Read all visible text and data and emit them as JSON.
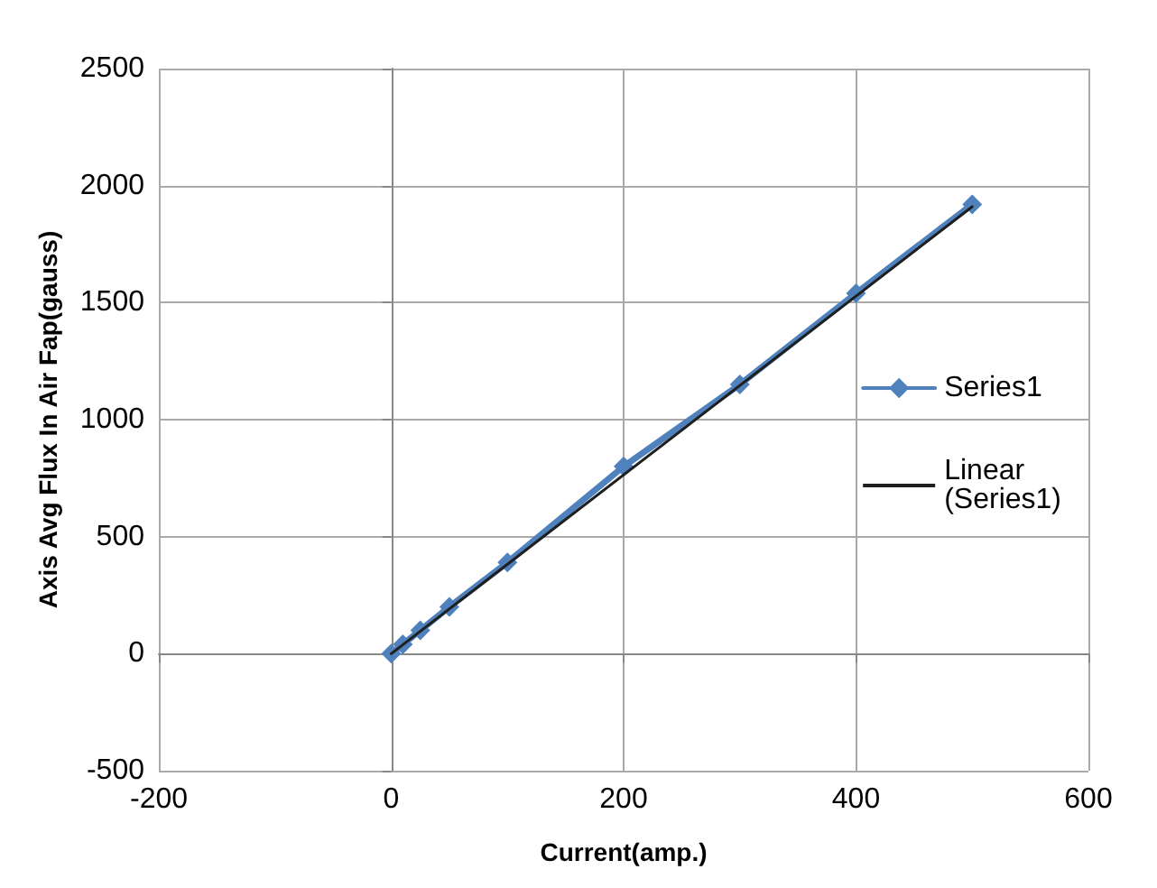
{
  "chart_data": {
    "type": "line",
    "xlabel": "Current(amp.)",
    "ylabel": "Axis Avg Flux In Air Fap(gauss)",
    "x": [
      0,
      10,
      25,
      50,
      100,
      200,
      300,
      400,
      500
    ],
    "series": [
      {
        "name": "Series1",
        "color": "#4f81bd",
        "values": [
          0,
          40,
          100,
          200,
          390,
          800,
          1150,
          1540,
          1920
        ],
        "marker": "diamond",
        "line_style": "solid"
      },
      {
        "name": "Linear (Series1)",
        "color": "#1f1f1f",
        "type": "line",
        "x": [
          0,
          500
        ],
        "values": [
          0,
          1910
        ],
        "marker": "none",
        "line_style": "solid"
      }
    ],
    "xlim": [
      -200,
      600
    ],
    "xticks": [
      -200,
      0,
      200,
      400,
      600
    ],
    "ylim": [
      -500,
      2500
    ],
    "yticks": [
      -500,
      0,
      500,
      1000,
      1500,
      2000,
      2500
    ],
    "grid": true,
    "legend": "right"
  }
}
